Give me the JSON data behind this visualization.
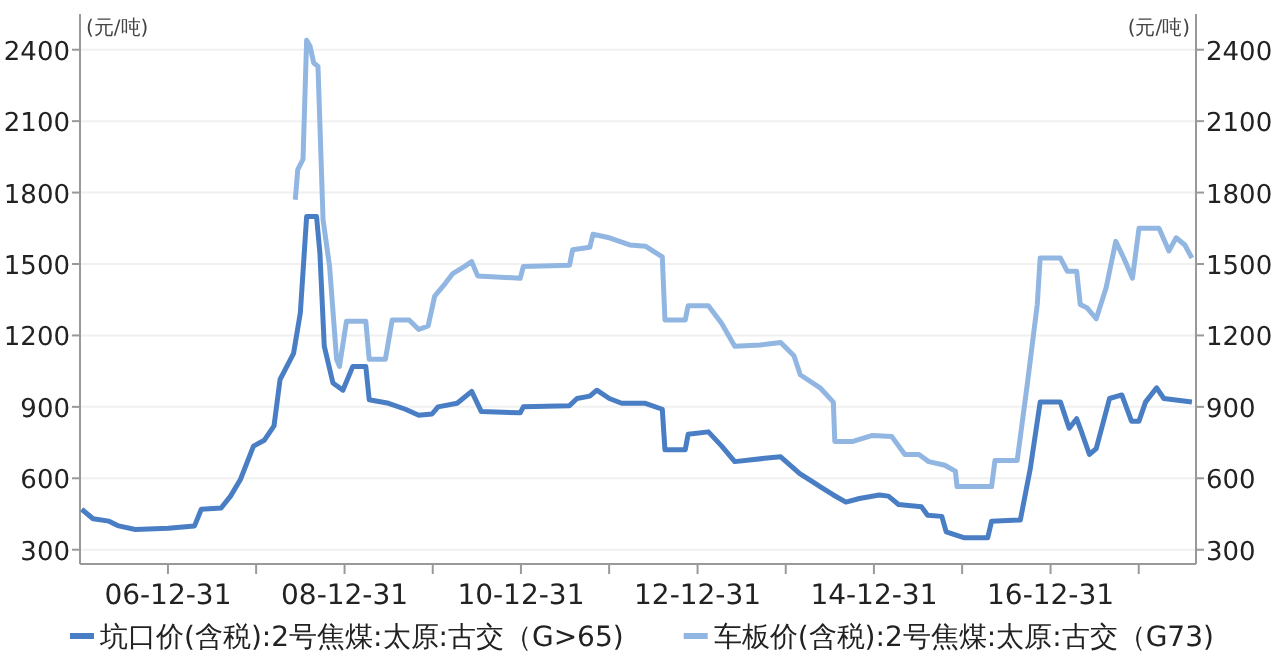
{
  "chart_data": {
    "type": "line",
    "ylabel": "(元/吨)",
    "y2label": "(元/吨)",
    "legend": "bottom",
    "grid": "y",
    "xlim": [
      "2006-01-01",
      "2018-08-25"
    ],
    "xticks": [
      {
        "value": "2006-12-31",
        "label": "06-12-31"
      },
      {
        "value": "2007-12-31",
        "label": null
      },
      {
        "value": "2008-12-31",
        "label": "08-12-31"
      },
      {
        "value": "2009-12-31",
        "label": null
      },
      {
        "value": "2010-12-31",
        "label": "10-12-31"
      },
      {
        "value": "2011-12-31",
        "label": null
      },
      {
        "value": "2012-12-31",
        "label": "12-12-31"
      },
      {
        "value": "2013-12-31",
        "label": null
      },
      {
        "value": "2014-12-31",
        "label": "14-12-31"
      },
      {
        "value": "2015-12-31",
        "label": null
      },
      {
        "value": "2016-12-31",
        "label": "16-12-31"
      },
      {
        "value": "2017-12-31",
        "label": null
      }
    ],
    "ylim": [
      240,
      2550
    ],
    "yticks": [
      300,
      600,
      900,
      1200,
      1500,
      1800,
      2100,
      2400
    ],
    "y2lim": [
      240,
      2550
    ],
    "y2ticks": [
      300,
      600,
      900,
      1200,
      1500,
      1800,
      2100,
      2400
    ],
    "series": [
      {
        "name": "坑口价(含税):2号焦煤:太原:古交（G>65)",
        "color": "#4a7ec4",
        "x": [
          "2006-01-08",
          "2006-02-24",
          "2006-05-01",
          "2006-06-10",
          "2006-08-18",
          "2007-01-01",
          "2007-04-20",
          "2007-05-18",
          "2007-08-08",
          "2007-09-16",
          "2007-10-27",
          "2007-12-20",
          "2008-02-03",
          "2008-03-14",
          "2008-04-08",
          "2008-06-03",
          "2008-07-01",
          "2008-07-27",
          "2008-09-06",
          "2008-09-20",
          "2008-10-08",
          "2008-11-13",
          "2008-12-24",
          "2009-02-03",
          "2009-03-29",
          "2009-04-12",
          "2009-07-01",
          "2009-09-09",
          "2009-11-03",
          "2009-12-28",
          "2010-01-22",
          "2010-04-11",
          "2010-06-10",
          "2010-07-20",
          "2010-12-28",
          "2011-01-10",
          "2011-07-20",
          "2011-08-20",
          "2011-10-12",
          "2011-11-10",
          "2012-01-01",
          "2012-02-21",
          "2012-05-29",
          "2012-08-07",
          "2012-08-18",
          "2012-11-10",
          "2012-11-22",
          "2013-02-14",
          "2013-04-10",
          "2013-06-03",
          "2013-10-15",
          "2013-12-10",
          "2014-02-27",
          "2014-04-22",
          "2014-05-22",
          "2014-07-16",
          "2014-09-06",
          "2014-11-01",
          "2015-01-22",
          "2015-03-01",
          "2015-04-12",
          "2015-07-16",
          "2015-08-10",
          "2015-10-08",
          "2015-10-26",
          "2016-01-10",
          "2016-04-15",
          "2016-05-01",
          "2016-08-28",
          "2016-10-08",
          "2016-11-18",
          "2017-02-10",
          "2017-03-18",
          "2017-04-18",
          "2017-05-03",
          "2017-06-10",
          "2017-07-08",
          "2017-09-01",
          "2017-10-22",
          "2017-12-01",
          "2018-01-01",
          "2018-01-28",
          "2018-03-15",
          "2018-04-14",
          "2018-08-08"
        ],
        "values": [
          470,
          430,
          420,
          400,
          385,
          390,
          400,
          470,
          475,
          525,
          595,
          735,
          760,
          820,
          1015,
          1125,
          1295,
          1700,
          1700,
          1545,
          1155,
          1000,
          970,
          1070,
          1070,
          930,
          915,
          890,
          865,
          870,
          900,
          915,
          965,
          880,
          875,
          900,
          905,
          935,
          945,
          970,
          935,
          915,
          915,
          890,
          720,
          720,
          785,
          795,
          735,
          670,
          685,
          690,
          620,
          585,
          565,
          530,
          500,
          515,
          530,
          525,
          490,
          480,
          445,
          440,
          375,
          350,
          350,
          420,
          425,
          640,
          920,
          920,
          810,
          850,
          810,
          700,
          725,
          935,
          950,
          840,
          840,
          920,
          980,
          935,
          920
        ]
      },
      {
        "name": "车板价(含税):2号焦煤:太原:古交（G73)",
        "color": "#92b6e2",
        "x": [
          "2008-06-10",
          "2008-06-20",
          "2008-07-12",
          "2008-07-27",
          "2008-08-10",
          "2008-08-25",
          "2008-09-12",
          "2008-10-03",
          "2008-10-30",
          "2008-11-28",
          "2008-12-10",
          "2009-01-08",
          "2009-03-29",
          "2009-04-12",
          "2009-06-18",
          "2009-07-16",
          "2009-09-24",
          "2009-11-03",
          "2009-12-12",
          "2010-01-08",
          "2010-02-22",
          "2010-03-24",
          "2010-05-12",
          "2010-06-10",
          "2010-07-05",
          "2010-12-28",
          "2011-01-10",
          "2011-07-20",
          "2011-08-02",
          "2011-10-12",
          "2011-10-25",
          "2012-01-01",
          "2012-03-25",
          "2012-05-29",
          "2012-08-07",
          "2012-08-18",
          "2012-11-10",
          "2012-11-22",
          "2013-02-14",
          "2013-04-10",
          "2013-06-03",
          "2013-09-16",
          "2013-12-10",
          "2014-02-03",
          "2014-03-01",
          "2014-05-22",
          "2014-07-16",
          "2014-07-22",
          "2014-10-05",
          "2014-12-25",
          "2015-03-15",
          "2015-05-08",
          "2015-07-05",
          "2015-08-15",
          "2015-10-20",
          "2015-12-03",
          "2015-12-10",
          "2016-05-01",
          "2016-05-15",
          "2016-08-15",
          "2016-09-27",
          "2016-11-06",
          "2016-11-18",
          "2017-02-10",
          "2017-03-10",
          "2017-04-18",
          "2017-05-03",
          "2017-06-01",
          "2017-07-08",
          "2017-08-18",
          "2017-09-27",
          "2017-10-30",
          "2017-12-05",
          "2018-01-01",
          "2018-03-25",
          "2018-05-05",
          "2018-06-04",
          "2018-07-10",
          "2018-08-08"
        ],
        "values": [
          1770,
          1895,
          1940,
          2440,
          2415,
          2345,
          2330,
          1685,
          1490,
          1100,
          1070,
          1260,
          1260,
          1100,
          1100,
          1265,
          1265,
          1225,
          1240,
          1365,
          1420,
          1460,
          1490,
          1510,
          1450,
          1440,
          1490,
          1495,
          1560,
          1570,
          1625,
          1610,
          1580,
          1575,
          1530,
          1265,
          1265,
          1325,
          1325,
          1250,
          1155,
          1160,
          1170,
          1115,
          1035,
          980,
          920,
          755,
          755,
          780,
          775,
          700,
          700,
          670,
          655,
          630,
          565,
          565,
          675,
          675,
          1005,
          1330,
          1525,
          1525,
          1470,
          1470,
          1330,
          1315,
          1270,
          1400,
          1595,
          1525,
          1440,
          1650,
          1650,
          1555,
          1610,
          1580,
          1525
        ]
      }
    ]
  }
}
